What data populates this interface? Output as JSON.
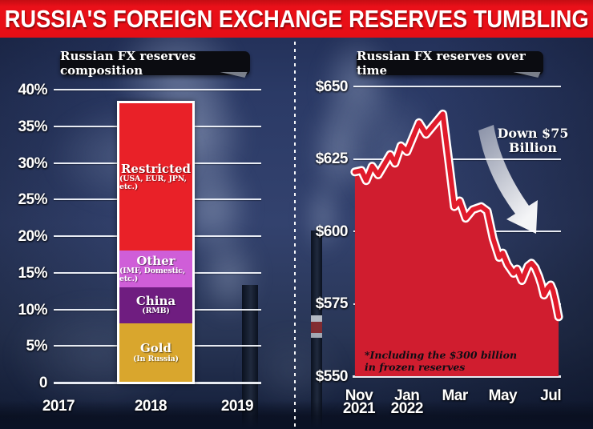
{
  "banner": {
    "title": "RUSSIA'S FOREIGN EXCHANGE RESERVES TUMBLING",
    "bg_color": "#e60e15",
    "text_color": "#ffffff"
  },
  "colors": {
    "background_navy": "#2b3a66",
    "badge_bg": "#0b0c11",
    "grid_white": "#f2f6fc"
  },
  "chart_data": [
    {
      "type": "bar",
      "variant": "stacked",
      "title": "Russian FX reserves composition",
      "categories": [
        "2017",
        "2018",
        "2019"
      ],
      "bar_category": "2018",
      "ylim": [
        0,
        40
      ],
      "y_tick_labels": [
        "40%",
        "35%",
        "30%",
        "25%",
        "20%",
        "15%",
        "10%",
        "5%",
        "0"
      ],
      "y_tick_values": [
        40,
        35,
        30,
        25,
        20,
        15,
        10,
        5,
        0
      ],
      "grid": true,
      "series": [
        {
          "name": "Gold",
          "sublabel": "(In Russia)",
          "value": 8,
          "color": "#d9a62d"
        },
        {
          "name": "China",
          "sublabel": "(RMB)",
          "value": 5,
          "color": "#6f1d80"
        },
        {
          "name": "Other",
          "sublabel": "(IMF, Domestic, etc.)",
          "value": 5,
          "color": "#cf5ed8"
        },
        {
          "name": "Restricted",
          "sublabel": "(USA, EUR, JPN, etc.)",
          "value": 20.3,
          "color": "#e92128"
        }
      ]
    },
    {
      "type": "area",
      "title": "Russian FX reserves over time",
      "ylim": [
        550,
        650
      ],
      "y_tick_labels": [
        "$650",
        "$625",
        "$600",
        "$575",
        "$550"
      ],
      "y_tick_values": [
        650,
        625,
        600,
        575,
        550
      ],
      "x_tick_labels": [
        [
          "Nov",
          "2021"
        ],
        [
          "Jan",
          "2022"
        ],
        [
          "Mar"
        ],
        [
          "May"
        ],
        [
          "Jul"
        ]
      ],
      "x_tick_positions": [
        0,
        2,
        4,
        6,
        8
      ],
      "x_unit": "months from Nov 2021",
      "annotation_lines": [
        "Down $75",
        "Billion"
      ],
      "footnote_lines": [
        "*Including the $300 billion",
        "in frozen reserves"
      ],
      "area_color": "#d01d2f",
      "line_color": "#e01b2b",
      "line_outline": "#ffffff",
      "points": [
        [
          -0.17,
          620.5
        ],
        [
          0.1,
          621
        ],
        [
          0.3,
          617.5
        ],
        [
          0.55,
          622.5
        ],
        [
          0.8,
          619.5
        ],
        [
          1.3,
          626.5
        ],
        [
          1.5,
          623.5
        ],
        [
          1.75,
          629.5
        ],
        [
          2.0,
          627.5
        ],
        [
          2.5,
          637.5
        ],
        [
          2.8,
          633.5
        ],
        [
          3.5,
          640.5
        ],
        [
          3.75,
          624
        ],
        [
          3.98,
          608.5
        ],
        [
          4.2,
          610.5
        ],
        [
          4.45,
          604.5
        ],
        [
          4.75,
          607.5
        ],
        [
          5.1,
          608.5
        ],
        [
          5.35,
          607
        ],
        [
          5.6,
          597.5
        ],
        [
          5.85,
          591
        ],
        [
          6.0,
          592.5
        ],
        [
          6.2,
          588.5
        ],
        [
          6.45,
          585.5
        ],
        [
          6.6,
          587
        ],
        [
          6.8,
          583
        ],
        [
          7.05,
          588
        ],
        [
          7.2,
          589
        ],
        [
          7.35,
          587.5
        ],
        [
          7.5,
          584.5
        ],
        [
          7.62,
          581.5
        ],
        [
          7.72,
          578
        ],
        [
          7.88,
          580.5
        ],
        [
          8.0,
          581.5
        ],
        [
          8.1,
          579.5
        ],
        [
          8.2,
          576
        ],
        [
          8.33,
          570.5
        ]
      ]
    }
  ]
}
